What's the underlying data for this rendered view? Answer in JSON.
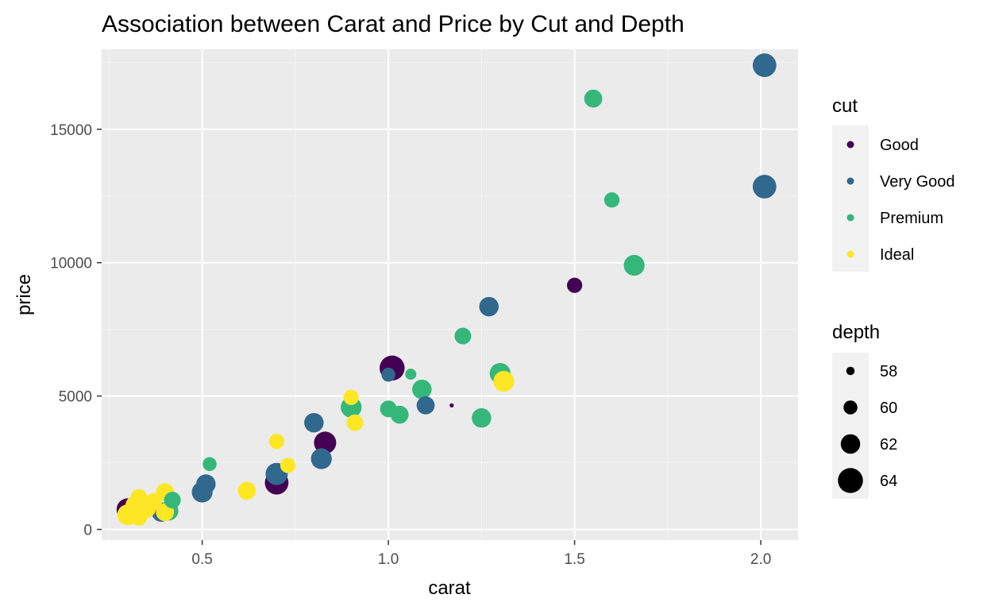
{
  "chart_data": {
    "type": "scatter",
    "title": "Association between Carat and Price by Cut and Depth",
    "xlabel": "carat",
    "ylabel": "price",
    "xlim": [
      0.23,
      2.1
    ],
    "ylim": [
      -400,
      18000
    ],
    "x_ticks": [
      0.5,
      1.0,
      1.5,
      2.0
    ],
    "x_tick_labels": [
      "0.5",
      "1.0",
      "1.5",
      "2.0"
    ],
    "y_ticks": [
      0,
      5000,
      10000,
      15000
    ],
    "y_tick_labels": [
      "0",
      "5000",
      "10000",
      "15000"
    ],
    "grid": true,
    "legend_position": "right",
    "color_legend": {
      "title": "cut",
      "entries": [
        {
          "label": "Good",
          "color": "#440154"
        },
        {
          "label": "Very Good",
          "color": "#31688e"
        },
        {
          "label": "Premium",
          "color": "#35b779"
        },
        {
          "label": "Ideal",
          "color": "#fde725"
        }
      ]
    },
    "size_legend": {
      "title": "depth",
      "entries": [
        {
          "label": "58",
          "value": 58
        },
        {
          "label": "60",
          "value": 60
        },
        {
          "label": "62",
          "value": 62
        },
        {
          "label": "64",
          "value": 64
        }
      ]
    },
    "points": [
      {
        "carat": 2.01,
        "price": 17400,
        "cut": "Very Good",
        "depth": 63.5
      },
      {
        "carat": 2.01,
        "price": 12850,
        "cut": "Very Good",
        "depth": 63.5
      },
      {
        "carat": 1.55,
        "price": 16150,
        "cut": "Premium",
        "depth": 61.5
      },
      {
        "carat": 1.6,
        "price": 12350,
        "cut": "Premium",
        "depth": 60.5
      },
      {
        "carat": 1.66,
        "price": 9900,
        "cut": "Premium",
        "depth": 62.5
      },
      {
        "carat": 1.5,
        "price": 9150,
        "cut": "Good",
        "depth": 60.5
      },
      {
        "carat": 1.27,
        "price": 8350,
        "cut": "Very Good",
        "depth": 62
      },
      {
        "carat": 1.2,
        "price": 7250,
        "cut": "Premium",
        "depth": 61
      },
      {
        "carat": 1.3,
        "price": 5850,
        "cut": "Premium",
        "depth": 62.5
      },
      {
        "carat": 1.31,
        "price": 5550,
        "cut": "Ideal",
        "depth": 62.5
      },
      {
        "carat": 1.25,
        "price": 4180,
        "cut": "Premium",
        "depth": 62
      },
      {
        "carat": 1.17,
        "price": 4650,
        "cut": "Good",
        "depth": 56.5
      },
      {
        "carat": 1.1,
        "price": 4650,
        "cut": "Very Good",
        "depth": 61.5
      },
      {
        "carat": 1.09,
        "price": 5250,
        "cut": "Premium",
        "depth": 62
      },
      {
        "carat": 1.06,
        "price": 5820,
        "cut": "Premium",
        "depth": 59
      },
      {
        "carat": 1.01,
        "price": 6050,
        "cut": "Good",
        "depth": 64
      },
      {
        "carat": 1.0,
        "price": 5800,
        "cut": "Very Good",
        "depth": 60
      },
      {
        "carat": 1.0,
        "price": 4520,
        "cut": "Premium",
        "depth": 61
      },
      {
        "carat": 1.03,
        "price": 4300,
        "cut": "Premium",
        "depth": 61.5
      },
      {
        "carat": 0.9,
        "price": 4950,
        "cut": "Ideal",
        "depth": 60.5
      },
      {
        "carat": 0.91,
        "price": 4000,
        "cut": "Ideal",
        "depth": 61
      },
      {
        "carat": 0.9,
        "price": 4580,
        "cut": "Premium",
        "depth": 62.5
      },
      {
        "carat": 0.8,
        "price": 4000,
        "cut": "Very Good",
        "depth": 62
      },
      {
        "carat": 0.83,
        "price": 3250,
        "cut": "Good",
        "depth": 63
      },
      {
        "carat": 0.82,
        "price": 2650,
        "cut": "Very Good",
        "depth": 62.5
      },
      {
        "carat": 0.7,
        "price": 3300,
        "cut": "Ideal",
        "depth": 60.5
      },
      {
        "carat": 0.73,
        "price": 2400,
        "cut": "Ideal",
        "depth": 60.5
      },
      {
        "carat": 0.7,
        "price": 1750,
        "cut": "Good",
        "depth": 63.5
      },
      {
        "carat": 0.7,
        "price": 2080,
        "cut": "Very Good",
        "depth": 63
      },
      {
        "carat": 0.62,
        "price": 1450,
        "cut": "Ideal",
        "depth": 61.5
      },
      {
        "carat": 0.52,
        "price": 2450,
        "cut": "Premium",
        "depth": 60
      },
      {
        "carat": 0.51,
        "price": 1700,
        "cut": "Very Good",
        "depth": 62
      },
      {
        "carat": 0.5,
        "price": 1400,
        "cut": "Very Good",
        "depth": 62.5
      },
      {
        "carat": 0.42,
        "price": 1100,
        "cut": "Premium",
        "depth": 61
      },
      {
        "carat": 0.4,
        "price": 1400,
        "cut": "Ideal",
        "depth": 61.5
      },
      {
        "carat": 0.41,
        "price": 700,
        "cut": "Premium",
        "depth": 62
      },
      {
        "carat": 0.39,
        "price": 650,
        "cut": "Very Good",
        "depth": 62
      },
      {
        "carat": 0.4,
        "price": 650,
        "cut": "Ideal",
        "depth": 61.5
      },
      {
        "carat": 0.37,
        "price": 1050,
        "cut": "Ideal",
        "depth": 61
      },
      {
        "carat": 0.35,
        "price": 800,
        "cut": "Ideal",
        "depth": 62
      },
      {
        "carat": 0.33,
        "price": 1200,
        "cut": "Ideal",
        "depth": 61
      },
      {
        "carat": 0.32,
        "price": 900,
        "cut": "Ideal",
        "depth": 62
      },
      {
        "carat": 0.3,
        "price": 750,
        "cut": "Good",
        "depth": 63
      },
      {
        "carat": 0.3,
        "price": 550,
        "cut": "Ideal",
        "depth": 62.5
      },
      {
        "carat": 0.33,
        "price": 450,
        "cut": "Ideal",
        "depth": 61
      }
    ]
  }
}
